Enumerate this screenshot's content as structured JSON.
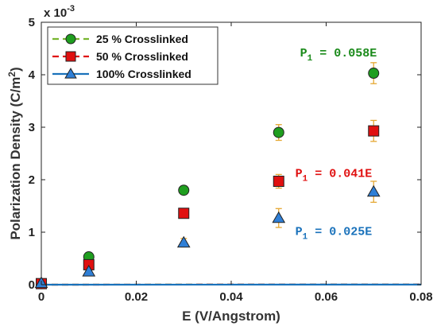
{
  "chart_data": {
    "type": "scatter",
    "xlabel": "E (V/Angstrom)",
    "ylabel_main": "Polarization Density (C/m",
    "ylabel_sup": "2",
    "ylabel_end": ")",
    "xlim": [
      0,
      0.08
    ],
    "ylim": [
      0,
      5
    ],
    "y_scale_factor": "x 10",
    "y_scale_exponent": "-3",
    "xticks": [
      0,
      0.02,
      0.04,
      0.06,
      0.08
    ],
    "xtick_labels": [
      "0",
      "0.02",
      "0.04",
      "0.06",
      "0.08"
    ],
    "yticks": [
      0,
      1,
      2,
      3,
      4,
      5
    ],
    "ytick_labels": [
      "0",
      "1",
      "2",
      "3",
      "4",
      "5"
    ],
    "grid": false,
    "legend_position": "top-left",
    "series": [
      {
        "name": "25 % Crosslinked",
        "marker": "circle",
        "color": "#1f9e1f",
        "line_color": "#77b52f",
        "x": [
          0,
          0.01,
          0.03,
          0.05,
          0.07
        ],
        "y": [
          0.02,
          0.53,
          1.8,
          2.9,
          4.03
        ],
        "error": [
          0.03,
          0.06,
          0.08,
          0.15,
          0.2
        ],
        "fit": {
          "slope": 0.058,
          "style": "dashed"
        },
        "annotation": {
          "prefix": "P",
          "sub": "1",
          "suffix": " = 0.058E",
          "at": [
            0.0545,
            4.35
          ],
          "color": "#1a8a1a"
        }
      },
      {
        "name": "50 % Crosslinked",
        "marker": "square",
        "color": "#e01010",
        "line_color": "#e01010",
        "x": [
          0,
          0.01,
          0.03,
          0.05,
          0.07
        ],
        "y": [
          0.02,
          0.38,
          1.36,
          1.97,
          2.93
        ],
        "error": [
          0.03,
          0.06,
          0.08,
          0.13,
          0.2
        ],
        "fit": {
          "slope": 0.041,
          "style": "dashed"
        },
        "annotation": {
          "prefix": "P",
          "sub": "1",
          "suffix": " = 0.041E",
          "at": [
            0.0535,
            2.05
          ],
          "color": "#e01010"
        }
      },
      {
        "name": "100% Crosslinked",
        "marker": "triangle",
        "color": "#2f7fd6",
        "line_color": "#1a72bb",
        "x": [
          0,
          0.01,
          0.03,
          0.05,
          0.07
        ],
        "y": [
          0.03,
          0.25,
          0.8,
          1.27,
          1.77
        ],
        "error": [
          0.03,
          0.05,
          0.08,
          0.18,
          0.2
        ],
        "fit": {
          "slope": 0.025,
          "style": "solid"
        },
        "annotation": {
          "prefix": "P",
          "sub": "1",
          "suffix": " = 0.025E",
          "at": [
            0.0535,
            0.95
          ],
          "color": "#1a72bb"
        }
      }
    ],
    "error_bar_color": "#e5a833"
  }
}
